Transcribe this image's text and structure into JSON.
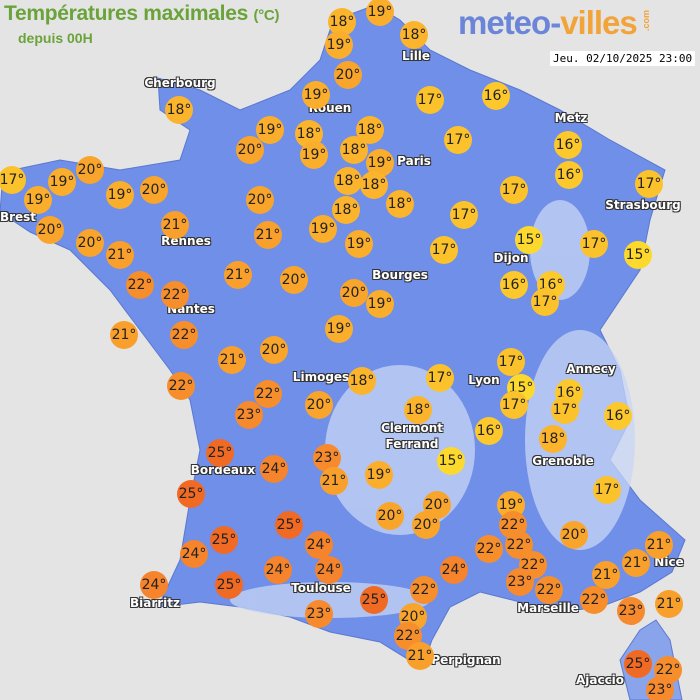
{
  "header": {
    "title": "Températures maximales",
    "unit": "(°C)",
    "subtitle": "depuis 00H",
    "logo_part1": "meteo-",
    "logo_part2": "villes",
    "logo_suffix": ".com",
    "datetime": "Jeu. 02/10/2025 23:00"
  },
  "colors": {
    "land": "#6f8fe8",
    "relief": "#c8d6f5",
    "sea": "#e4e4e4",
    "title": "#6aa33a",
    "scale": {
      "15": "#fcd92c",
      "16": "#fcc82c",
      "17": "#fcc22c",
      "18": "#fbb42c",
      "19": "#fbae2c",
      "20": "#f9a52c",
      "21": "#f9a02c",
      "22": "#f78e2c",
      "23": "#f68a2c",
      "24": "#f5842c",
      "25": "#f06a24"
    }
  },
  "cities": [
    "Cherbourg",
    "Lille",
    "Rouen",
    "Paris",
    "Metz",
    "Strasbourg",
    "Brest",
    "Rennes",
    "Nantes",
    "Dijon",
    "Bourges",
    "Limoges",
    "Lyon",
    "Annecy",
    "Clermont Ferrand",
    "Grenoble",
    "Bordeaux",
    "Toulouse",
    "Biarritz",
    "Marseille",
    "Nice",
    "Perpignan",
    "Ajaccio"
  ],
  "temperatures": [
    "18°",
    "19°",
    "19°",
    "18°",
    "20°",
    "19°",
    "18°",
    "17°",
    "16°",
    "19°",
    "18°",
    "18°",
    "20°",
    "19°",
    "18°",
    "19°",
    "17°",
    "16°",
    "17°",
    "19°",
    "19°",
    "20°",
    "19°",
    "20°",
    "18°",
    "18°",
    "18°",
    "20°",
    "18°",
    "17°",
    "16°",
    "17°",
    "21°",
    "20°",
    "20°",
    "21°",
    "21°",
    "19°",
    "19°",
    "17°",
    "15°",
    "17°",
    "17°",
    "15°",
    "22°",
    "22°",
    "21°",
    "20°",
    "20°",
    "19°",
    "16°",
    "16°",
    "17°",
    "21°",
    "22°",
    "19°",
    "21°",
    "20°",
    "22°",
    "22°",
    "18°",
    "17°",
    "17°",
    "15°",
    "16°",
    "17°",
    "17°",
    "16°",
    "23°",
    "20°",
    "18°",
    "16°",
    "18°",
    "25°",
    "24°",
    "23°",
    "15°",
    "21°",
    "19°",
    "25°",
    "17°",
    "20°",
    "19°",
    "25°",
    "20°",
    "20°",
    "25°",
    "22°",
    "20°",
    "21°",
    "24°",
    "24°",
    "22°",
    "22°",
    "21°",
    "22°",
    "23°",
    "24°",
    "24°",
    "24°",
    "21°",
    "24°",
    "25°",
    "22°",
    "22°",
    "22°",
    "21°",
    "25°",
    "23°",
    "23°",
    "20°",
    "22°",
    "21°",
    "25°",
    "22°",
    "23°"
  ]
}
